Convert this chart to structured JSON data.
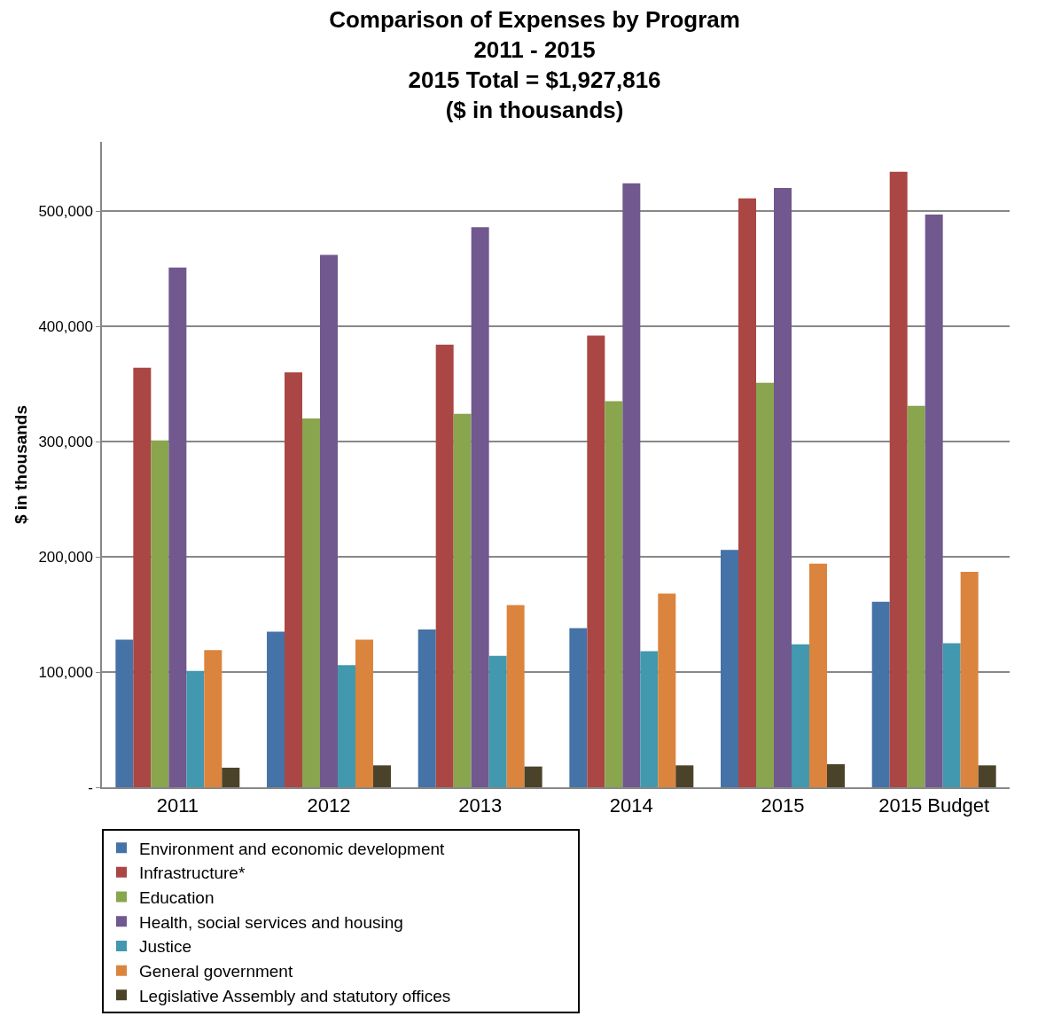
{
  "chart_data": {
    "type": "bar",
    "title": "Comparison of Expenses by Program\n2011 - 2015\n2015 Total = $1,927,816\n($ in thousands)",
    "ylabel": "$ in thousands",
    "categories": [
      "2011",
      "2012",
      "2013",
      "2014",
      "2015",
      "2015 Budget"
    ],
    "series": [
      {
        "name": "Environment and economic development",
        "color": "#4572a7",
        "values": [
          128000,
          135000,
          137000,
          138000,
          206000,
          161000
        ]
      },
      {
        "name": "Infrastructure*",
        "color": "#aa4643",
        "values": [
          364000,
          360000,
          384000,
          392000,
          511000,
          534000
        ]
      },
      {
        "name": "Education",
        "color": "#89a54e",
        "values": [
          301000,
          320000,
          324000,
          335000,
          351000,
          331000
        ]
      },
      {
        "name": "Health, social services and housing",
        "color": "#71588f",
        "values": [
          451000,
          462000,
          486000,
          524000,
          520000,
          497000
        ]
      },
      {
        "name": "Justice",
        "color": "#4198af",
        "values": [
          101000,
          106000,
          114000,
          118000,
          124000,
          125000
        ]
      },
      {
        "name": "General government",
        "color": "#db843d",
        "values": [
          119000,
          128000,
          158000,
          168000,
          194000,
          187000
        ]
      },
      {
        "name": "Legislative Assembly and statutory offices",
        "color": "#4a4329",
        "values": [
          17000,
          19000,
          18000,
          19000,
          20000,
          19000
        ]
      }
    ],
    "ylim": [
      0,
      560000
    ],
    "yticks": [
      {
        "value": 0,
        "label": "-"
      },
      {
        "value": 100000,
        "label": "100,000"
      },
      {
        "value": 200000,
        "label": "200,000"
      },
      {
        "value": 300000,
        "label": "300,000"
      },
      {
        "value": 400000,
        "label": "400,000"
      },
      {
        "value": 500000,
        "label": "500,000"
      }
    ],
    "grid": "y",
    "legend": "bottom"
  }
}
